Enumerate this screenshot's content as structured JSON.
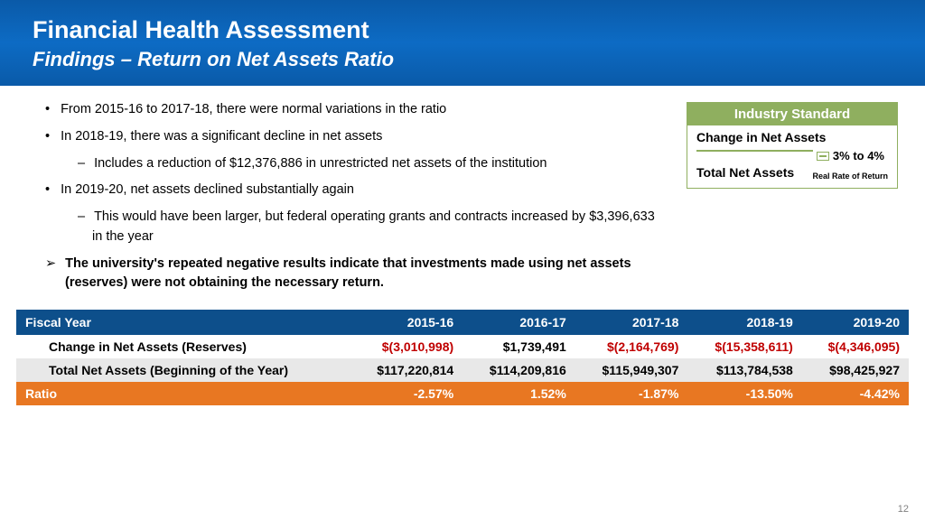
{
  "header": {
    "title": "Financial Health Assessment",
    "subtitle": "Findings – Return on Net Assets Ratio"
  },
  "bullets": [
    {
      "type": "bullet",
      "text": "From 2015-16 to 2017-18, there were normal variations in the ratio"
    },
    {
      "type": "bullet",
      "text": "In 2018-19, there was a significant decline in net assets"
    },
    {
      "type": "dash",
      "text": "Includes a reduction of $12,376,886 in unrestricted net assets of the institution"
    },
    {
      "type": "bullet",
      "text": "In 2019-20, net assets declined substantially again"
    },
    {
      "type": "dash",
      "text": "This would have been larger, but federal operating grants and contracts increased by $3,396,633 in the year"
    },
    {
      "type": "arrow",
      "text": "The university's repeated negative results indicate that investments made using net assets (reserves) were not obtaining the necessary return."
    }
  ],
  "sidebar": {
    "header": "Industry Standard",
    "top": "Change in Net Assets",
    "bottom": "Total Net Assets",
    "range": "3% to 4%",
    "note": "Real Rate of Return"
  },
  "table": {
    "columns": [
      "Fiscal Year",
      "2015-16",
      "2016-17",
      "2017-18",
      "2018-19",
      "2019-20"
    ],
    "rows": [
      {
        "label": "Change in Net Assets (Reserves)",
        "cells": [
          {
            "v": "$(3,010,998)",
            "neg": true
          },
          {
            "v": "$1,739,491",
            "neg": false
          },
          {
            "v": "$(2,164,769)",
            "neg": true
          },
          {
            "v": "$(15,358,611)",
            "neg": true
          },
          {
            "v": "$(4,346,095)",
            "neg": true
          }
        ]
      },
      {
        "label": "Total Net Assets (Beginning of the Year)",
        "cells": [
          {
            "v": "$117,220,814",
            "neg": false
          },
          {
            "v": "$114,209,816",
            "neg": false
          },
          {
            "v": "$115,949,307",
            "neg": false
          },
          {
            "v": "$113,784,538",
            "neg": false
          },
          {
            "v": "$98,425,927",
            "neg": false
          }
        ]
      }
    ],
    "ratio": {
      "label": "Ratio",
      "cells": [
        "-2.57%",
        "1.52%",
        "-1.87%",
        "-13.50%",
        "-4.42%"
      ]
    }
  },
  "page": "12",
  "colors": {
    "header_bg": "#0d6bc4",
    "table_header_bg": "#0d4f8b",
    "ratio_bg": "#e87722",
    "sidebar_accent": "#8faf5f",
    "neg_text": "#c00000"
  }
}
